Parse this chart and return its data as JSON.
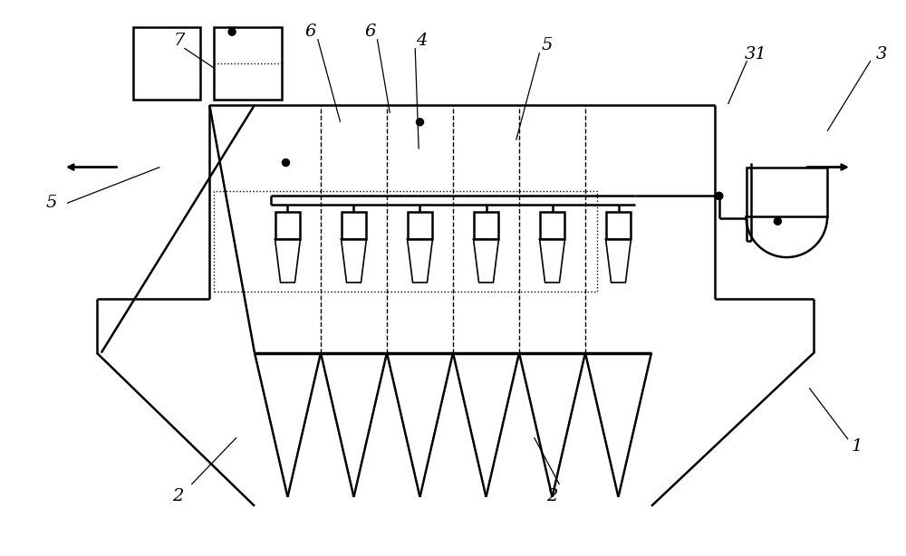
{
  "bg_color": "#ffffff",
  "fig_width": 10.0,
  "fig_height": 6.14
}
